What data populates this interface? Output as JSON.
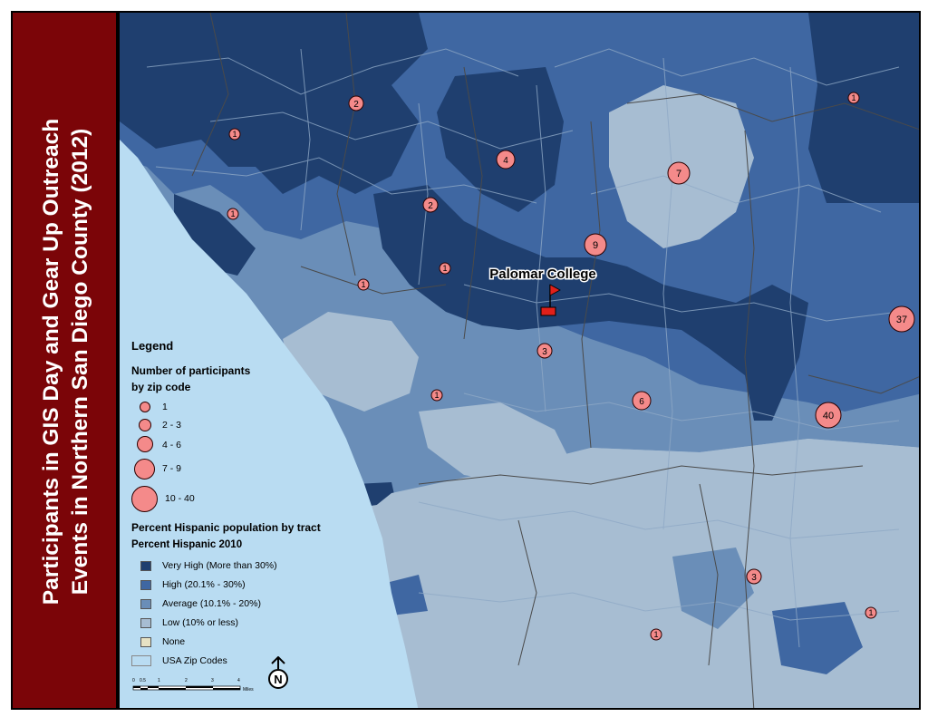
{
  "title": {
    "line1": "Participants in GIS Day and Gear Up Outreach",
    "line2": "Events in Northern San Diego County (2012)"
  },
  "colors": {
    "very_high": "#1f3f6f",
    "high": "#3f67a2",
    "average": "#6a8eb8",
    "low": "#a7bdd2",
    "none": "#e6e2c4",
    "ocean": "#b9dcf2",
    "participant_marker": "#f48a8a",
    "title_panel": "#7b0508"
  },
  "map": {
    "campus_label": "Palomar College",
    "participant_markers": [
      {
        "label": "2"
      },
      {
        "label": "1"
      },
      {
        "label": "1"
      },
      {
        "label": "4"
      },
      {
        "label": "2"
      },
      {
        "label": "7"
      },
      {
        "label": "1"
      },
      {
        "label": "9"
      },
      {
        "label": "1"
      },
      {
        "label": "1"
      },
      {
        "label": "37"
      },
      {
        "label": "3"
      },
      {
        "label": "1"
      },
      {
        "label": "6"
      },
      {
        "label": "40"
      },
      {
        "label": "3"
      },
      {
        "label": "1"
      },
      {
        "label": "1"
      }
    ]
  },
  "legend": {
    "title": "Legend",
    "participants_heading_line1": "Number of participants",
    "participants_heading_line2": "by zip code",
    "participant_classes": [
      "1",
      "2 - 3",
      "4 - 6",
      "7 - 9",
      "10 - 40"
    ],
    "hispanic_heading": "Percent Hispanic population by tract",
    "hispanic_subheading": "Percent Hispanic 2010",
    "hispanic_classes": [
      "Very High (More than 30%)",
      "High (20.1% - 30%)",
      "Average (10.1% - 20%)",
      "Low (10% or less)",
      "None"
    ],
    "zip_label": "USA Zip Codes"
  },
  "north_arrow": {
    "letter": "N"
  },
  "scale_bar": {
    "ticks": [
      "0",
      "0.5",
      "1",
      "2",
      "3",
      "4"
    ],
    "unit": "Miles"
  }
}
